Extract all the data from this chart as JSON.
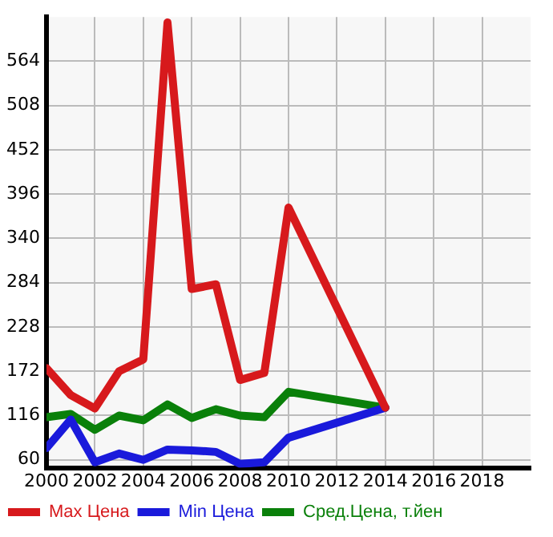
{
  "chart_data": {
    "type": "line",
    "x": [
      2000,
      2001,
      2002,
      2003,
      2004,
      2005,
      2006,
      2007,
      2008,
      2009,
      2010,
      2014
    ],
    "series": [
      {
        "name": "Max Цена",
        "color": "#d7191c",
        "values": [
          176,
          142,
          125,
          172,
          187,
          613,
          276,
          282,
          161,
          170,
          379,
          126
        ]
      },
      {
        "name": "Min Цена",
        "color": "#1a1adb",
        "values": [
          75,
          111,
          57,
          68,
          60,
          73,
          72,
          70,
          55,
          57,
          88,
          126
        ]
      },
      {
        "name": "Сред.Цена, т.йен",
        "color": "#0a800a",
        "values": [
          114,
          118,
          98,
          116,
          110,
          130,
          113,
          124,
          116,
          114,
          146,
          126
        ]
      }
    ],
    "xlim": [
      2000,
      2020
    ],
    "xticks": [
      2000,
      2002,
      2004,
      2006,
      2008,
      2010,
      2012,
      2014,
      2016,
      2018
    ],
    "ylim": [
      50,
      620
    ],
    "yticks": [
      60,
      116,
      172,
      228,
      284,
      340,
      396,
      452,
      508,
      564
    ],
    "grid": true,
    "legend": "bottom",
    "marker": "none",
    "line_style": "solid"
  }
}
